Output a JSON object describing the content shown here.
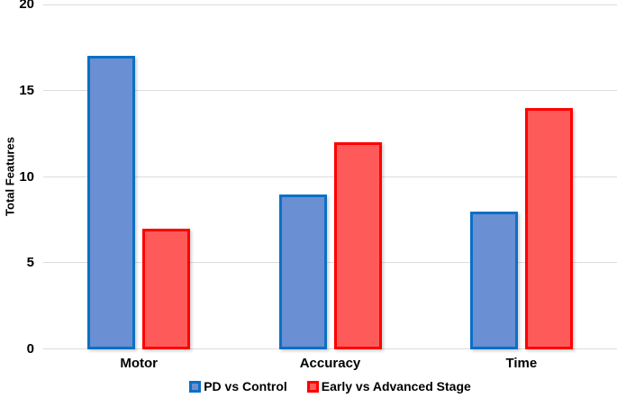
{
  "chart_data": {
    "type": "bar",
    "title": "",
    "categories": [
      "Motor",
      "Accuracy",
      "Time"
    ],
    "series": [
      {
        "name": "PD vs Control",
        "values": [
          17,
          9,
          8
        ],
        "fill": "#6A8FD2",
        "border": "#0B70C5"
      },
      {
        "name": "Early vs Advanced Stage",
        "values": [
          7,
          12,
          14
        ],
        "fill": "#FF5A5A",
        "border": "#FE0000"
      }
    ],
    "xlabel": "",
    "ylabel": "Total Features",
    "ylim": [
      0,
      20
    ],
    "yticks": [
      0,
      5,
      10,
      15,
      20
    ],
    "grid": true,
    "legend_position": "bottom"
  },
  "colors": {
    "gridline": "#DCDCDC",
    "text": "#000000",
    "background": "#FFFFFF"
  }
}
